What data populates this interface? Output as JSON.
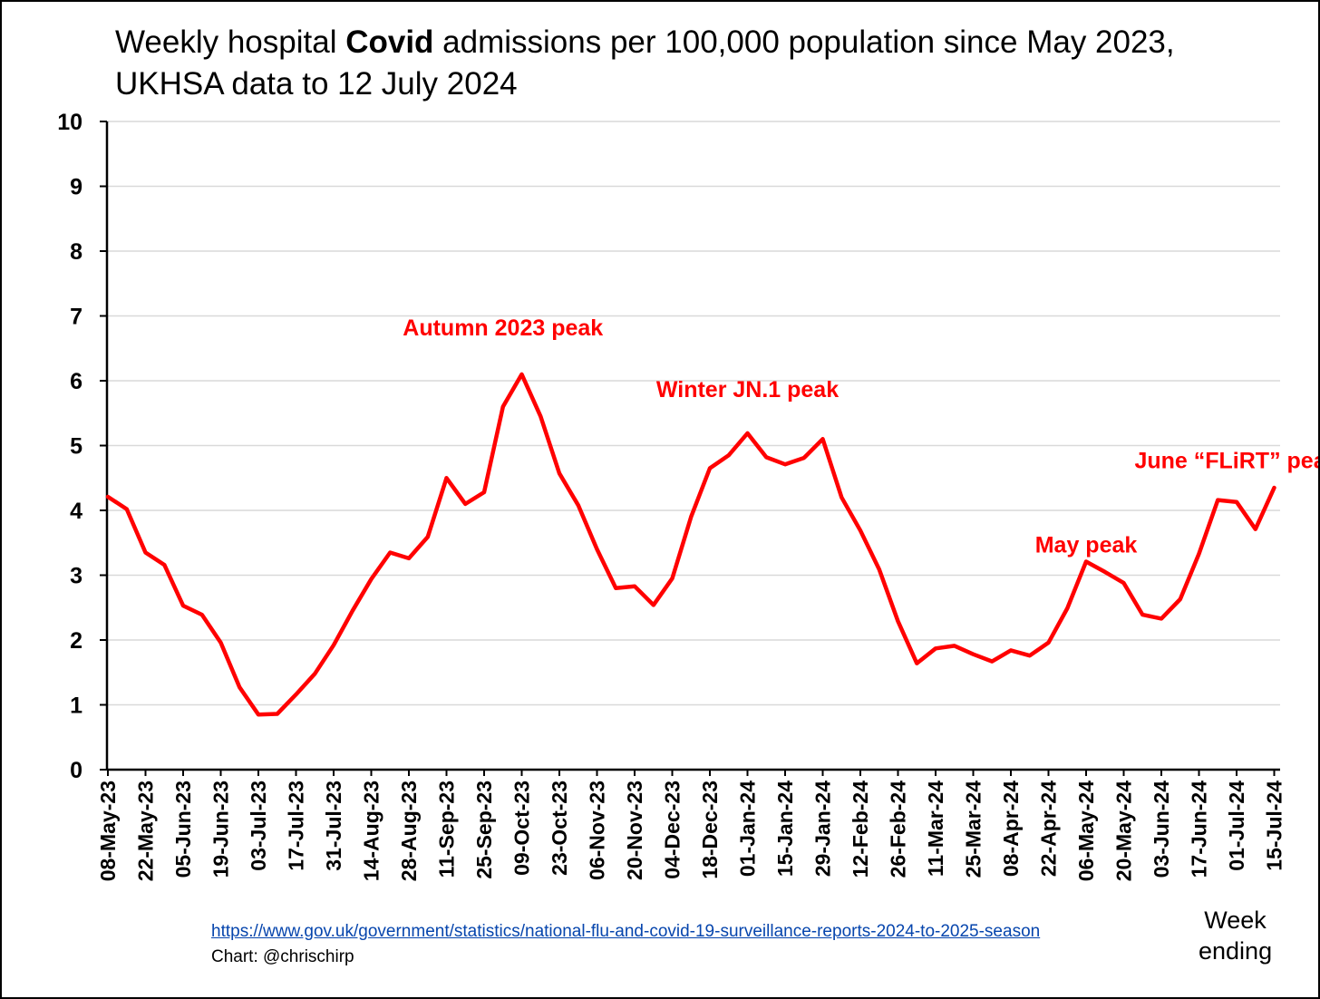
{
  "title": {
    "part1": "Weekly hospital ",
    "bold": "Covid",
    "part2": " admissions per 100,000 population since May 2023,",
    "line2": "UKHSA data to 12 July 2024"
  },
  "source_link": "https://www.gov.uk/government/statistics/national-flu-and-covid-19-surveillance-reports-2024-to-2025-season",
  "credit": "Chart: @chrischirp",
  "xaxis_label": {
    "line1": "Week",
    "line2": "ending"
  },
  "colors": {
    "line": "#ff0000",
    "annotation": "#ff0000",
    "grid": "#d9d9d9",
    "axis": "#000000"
  },
  "chart_data": {
    "type": "line",
    "ylim": [
      0,
      10
    ],
    "y_ticks": [
      0,
      1,
      2,
      3,
      4,
      5,
      6,
      7,
      8,
      9,
      10
    ],
    "grid": true,
    "x_tick_labels": [
      "08-May-23",
      "22-May-23",
      "05-Jun-23",
      "19-Jun-23",
      "03-Jul-23",
      "17-Jul-23",
      "31-Jul-23",
      "14-Aug-23",
      "28-Aug-23",
      "11-Sep-23",
      "25-Sep-23",
      "09-Oct-23",
      "23-Oct-23",
      "06-Nov-23",
      "20-Nov-23",
      "04-Dec-23",
      "18-Dec-23",
      "01-Jan-24",
      "15-Jan-24",
      "29-Jan-24",
      "12-Feb-24",
      "26-Feb-24",
      "11-Mar-24",
      "25-Mar-24",
      "08-Apr-24",
      "22-Apr-24",
      "06-May-24",
      "20-May-24",
      "03-Jun-24",
      "17-Jun-24",
      "01-Jul-24",
      "15-Jul-24"
    ],
    "x": [
      "08-May-23",
      "15-May-23",
      "22-May-23",
      "29-May-23",
      "05-Jun-23",
      "12-Jun-23",
      "19-Jun-23",
      "26-Jun-23",
      "03-Jul-23",
      "10-Jul-23",
      "17-Jul-23",
      "24-Jul-23",
      "31-Jul-23",
      "07-Aug-23",
      "14-Aug-23",
      "21-Aug-23",
      "28-Aug-23",
      "04-Sep-23",
      "11-Sep-23",
      "18-Sep-23",
      "25-Sep-23",
      "02-Oct-23",
      "09-Oct-23",
      "16-Oct-23",
      "23-Oct-23",
      "30-Oct-23",
      "06-Nov-23",
      "13-Nov-23",
      "20-Nov-23",
      "27-Nov-23",
      "04-Dec-23",
      "11-Dec-23",
      "18-Dec-23",
      "25-Dec-23",
      "01-Jan-24",
      "08-Jan-24",
      "15-Jan-24",
      "22-Jan-24",
      "29-Jan-24",
      "05-Feb-24",
      "12-Feb-24",
      "19-Feb-24",
      "26-Feb-24",
      "04-Mar-24",
      "11-Mar-24",
      "18-Mar-24",
      "25-Mar-24",
      "01-Apr-24",
      "08-Apr-24",
      "15-Apr-24",
      "22-Apr-24",
      "29-Apr-24",
      "06-May-24",
      "13-May-24",
      "20-May-24",
      "27-May-24",
      "03-Jun-24",
      "10-Jun-24",
      "17-Jun-24",
      "24-Jun-24",
      "01-Jul-24",
      "08-Jul-24",
      "15-Jul-24"
    ],
    "series": [
      {
        "values": [
          4.21,
          4.02,
          3.35,
          3.16,
          2.53,
          2.39,
          1.96,
          1.27,
          0.85,
          0.86,
          1.16,
          1.48,
          1.92,
          2.45,
          2.94,
          3.35,
          3.26,
          3.59,
          4.5,
          4.1,
          4.28,
          5.6,
          6.1,
          5.45,
          4.57,
          4.08,
          3.4,
          2.8,
          2.83,
          2.54,
          2.95,
          3.9,
          4.65,
          4.85,
          5.19,
          4.82,
          4.71,
          4.81,
          5.1,
          4.2,
          3.69,
          3.09,
          2.29,
          1.64,
          1.87,
          1.91,
          1.78,
          1.67,
          1.84,
          1.76,
          1.96,
          2.49,
          3.21,
          3.05,
          2.88,
          2.39,
          2.33,
          2.63,
          3.33,
          4.16,
          4.13,
          3.71,
          4.35
        ]
      }
    ],
    "annotations": [
      {
        "text": "Autumn 2023 peak",
        "x": "02-Oct-23",
        "y": 6.7
      },
      {
        "text": "Winter JN.1 peak",
        "x": "01-Jan-24",
        "y": 5.75
      },
      {
        "text": "May peak",
        "x": "06-May-24",
        "y": 3.35
      },
      {
        "text": "June “FLiRT” peak",
        "x": "01-Jul-24",
        "y": 4.65
      }
    ]
  }
}
